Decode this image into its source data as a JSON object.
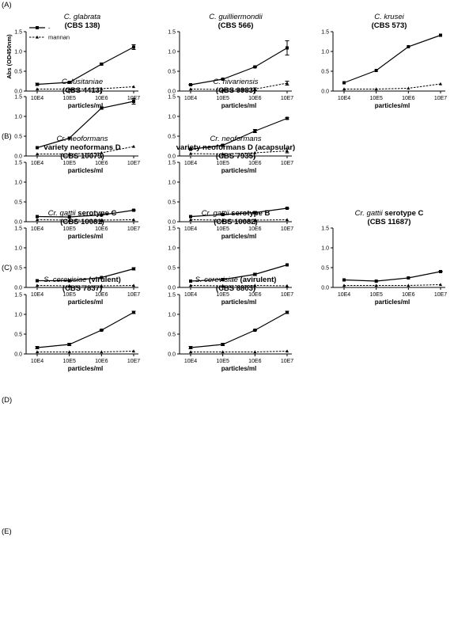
{
  "legend": {
    "line1": "-",
    "line2": "mannan"
  },
  "rows": [
    {
      "label": "(A)",
      "top": 0
    },
    {
      "label": "(B)",
      "top": 1
    },
    {
      "label": "(C)",
      "top": 2
    },
    {
      "label": "(D)",
      "top": 3
    },
    {
      "label": "(E)",
      "top": 4
    }
  ],
  "chart_data": [
    {
      "type": "line",
      "row": 0,
      "col": 0,
      "title_italic": "C. glabrata",
      "title_bold": "(CBS 138)",
      "title_line1_bold": "",
      "ylabel": "Abs (OD450nm)",
      "xlabel": "particles/ml",
      "categories": [
        "10E4",
        "10E5",
        "10E6",
        "10E7"
      ],
      "ylim": [
        0,
        1.5
      ],
      "yticks": [
        "0.0",
        "0.5",
        "1.0",
        "1.5"
      ],
      "series": [
        {
          "values": [
            0.17,
            0.22,
            0.68,
            1.11
          ],
          "err": [
            0.03,
            0.01,
            0.02,
            0.06
          ]
        },
        {
          "values": [
            0.05,
            0.05,
            0.06,
            0.11
          ],
          "err": [
            0,
            0,
            0,
            0
          ]
        }
      ]
    },
    {
      "type": "line",
      "row": 0,
      "col": 1,
      "title_italic": "C. guilliermondii",
      "title_bold": "(CBS 566)",
      "title_line1_bold": "",
      "ylabel": "",
      "xlabel": "particles/ml",
      "categories": [
        "10E4",
        "10E5",
        "10E6",
        "10E7"
      ],
      "ylim": [
        0,
        1.5
      ],
      "yticks": [
        "0.0",
        "0.5",
        "1.0",
        "1.5"
      ],
      "series": [
        {
          "values": [
            0.16,
            0.3,
            0.61,
            1.09
          ],
          "err": [
            0.01,
            0.01,
            0.01,
            0.18
          ]
        },
        {
          "values": [
            0.05,
            0.04,
            0.05,
            0.2
          ],
          "err": [
            0,
            0,
            0.03,
            0.05
          ]
        }
      ]
    },
    {
      "type": "line",
      "row": 0,
      "col": 2,
      "title_italic": "C. krusei",
      "title_bold": "(CBS 573)",
      "title_line1_bold": "",
      "ylabel": "",
      "xlabel": "particles/ml",
      "categories": [
        "10E4",
        "10E5",
        "10E6",
        "10E7"
      ],
      "ylim": [
        0,
        1.5
      ],
      "yticks": [
        "0.0",
        "0.5",
        "1.0",
        "1.5"
      ],
      "series": [
        {
          "values": [
            0.21,
            0.52,
            1.12,
            1.41
          ],
          "err": [
            0,
            0,
            0,
            0
          ]
        },
        {
          "values": [
            0.05,
            0.05,
            0.07,
            0.18
          ],
          "err": [
            0,
            0,
            0,
            0
          ]
        }
      ]
    },
    {
      "type": "line",
      "row": 1,
      "col": 0,
      "title_italic": "C. lusitaniae",
      "title_bold": "(CBS 4413)",
      "title_line1_bold": "",
      "ylabel": "",
      "xlabel": "particles/ml",
      "categories": [
        "10E4",
        "10E5",
        "10E6",
        "10E7"
      ],
      "ylim": [
        0,
        1.5
      ],
      "yticks": [
        "0.0",
        "0.5",
        "1.0",
        "1.5"
      ],
      "series": [
        {
          "values": [
            0.21,
            0.45,
            1.21,
            1.38
          ],
          "err": [
            0,
            0,
            0.03,
            0.07
          ]
        },
        {
          "values": [
            0.05,
            0.05,
            0.08,
            0.24
          ],
          "err": [
            0,
            0,
            0,
            0
          ]
        }
      ]
    },
    {
      "type": "line",
      "row": 1,
      "col": 1,
      "title_italic": "C. nivariensis",
      "title_bold": "(CBS 9983)",
      "title_line1_bold": "",
      "ylabel": "",
      "xlabel": "particles/ml",
      "categories": [
        "10E4",
        "10E5",
        "10E6",
        "10E7"
      ],
      "ylim": [
        0,
        1.5
      ],
      "yticks": [
        "0.0",
        "0.5",
        "1.0",
        "1.5"
      ],
      "series": [
        {
          "values": [
            0.17,
            0.27,
            0.63,
            0.95
          ],
          "err": [
            0.01,
            0.02,
            0.04,
            0.02
          ]
        },
        {
          "values": [
            0.06,
            0.05,
            0.08,
            0.13
          ],
          "err": [
            0,
            0,
            0,
            0.05
          ]
        }
      ]
    },
    {
      "type": "line",
      "row": 2,
      "col": 0,
      "title_italic": "Cr. neoformans",
      "title_line1_bold": "variety neoformans D",
      "title_bold": "(CBS 10079)",
      "ylabel": "",
      "xlabel": "particles/ml",
      "categories": [
        "10E4",
        "10E5",
        "10E6",
        "10E7"
      ],
      "ylim": [
        0,
        1.5
      ],
      "yticks": [
        "0.0",
        "0.5",
        "1.0",
        "1.5"
      ],
      "series": [
        {
          "values": [
            0.13,
            0.12,
            0.17,
            0.29
          ],
          "err": [
            0,
            0,
            0,
            0.01
          ]
        },
        {
          "values": [
            0.05,
            0.04,
            0.04,
            0.05
          ],
          "err": [
            0,
            0,
            0,
            0
          ]
        }
      ]
    },
    {
      "type": "line",
      "row": 2,
      "col": 1,
      "title_italic": "Cr. neoformans",
      "title_line1_bold": "variety neoformans D (acapsular)",
      "title_bold": "(CBS 7935)",
      "ylabel": "",
      "xlabel": "particles/ml",
      "categories": [
        "10E4",
        "10E5",
        "10E6",
        "10E7"
      ],
      "ylim": [
        0,
        1.5
      ],
      "yticks": [
        "0.0",
        "0.5",
        "1.0",
        "1.5"
      ],
      "series": [
        {
          "values": [
            0.13,
            0.18,
            0.23,
            0.34
          ],
          "err": [
            0,
            0.01,
            0.03,
            0.01
          ]
        },
        {
          "values": [
            0.05,
            0.04,
            0.04,
            0.05
          ],
          "err": [
            0,
            0,
            0,
            0
          ]
        }
      ]
    },
    {
      "type": "line",
      "row": 3,
      "col": 0,
      "title_italic": "Cr. gattii",
      "title_italic_suffix_bold": " serotype C",
      "title_bold": "(CBS 10081)",
      "title_line1_bold": "",
      "ylabel": "",
      "xlabel": "particles/ml",
      "categories": [
        "10E4",
        "10E5",
        "10E6",
        "10E7"
      ],
      "ylim": [
        0,
        1.5
      ],
      "yticks": [
        "0.0",
        "0.5",
        "1.0",
        "1.5"
      ],
      "series": [
        {
          "values": [
            0.17,
            0.17,
            0.25,
            0.47
          ],
          "err": [
            0,
            0,
            0,
            0.03
          ]
        },
        {
          "values": [
            0.05,
            0.04,
            0.04,
            0.05
          ],
          "err": [
            0,
            0,
            0,
            0
          ]
        }
      ]
    },
    {
      "type": "line",
      "row": 3,
      "col": 1,
      "title_italic": "Cr. gattii",
      "title_italic_suffix_bold": " serotype B",
      "title_bold": "(CBS 10082)",
      "title_line1_bold": "",
      "ylabel": "",
      "xlabel": "particles/ml",
      "categories": [
        "10E4",
        "10E5",
        "10E6",
        "10E7"
      ],
      "ylim": [
        0,
        1.5
      ],
      "yticks": [
        "0.0",
        "0.5",
        "1.0",
        "1.5"
      ],
      "series": [
        {
          "values": [
            0.16,
            0.2,
            0.33,
            0.57
          ],
          "err": [
            0,
            0.03,
            0.03,
            0
          ]
        },
        {
          "values": [
            0.05,
            0.04,
            0.05,
            0.04
          ],
          "err": [
            0,
            0,
            0,
            0
          ]
        }
      ]
    },
    {
      "type": "line",
      "row": 3,
      "col": 2,
      "title_italic": "Cr. gattii",
      "title_italic_suffix_bold": " serotype C",
      "title_bold": "(CBS 11687)",
      "title_line1_bold": "",
      "ylabel": "",
      "xlabel": "particles/ml",
      "categories": [
        "10E4",
        "10E5",
        "10E6",
        "10E7"
      ],
      "ylim": [
        0,
        1.5
      ],
      "yticks": [
        "0.0",
        "0.5",
        "1.0",
        "1.5"
      ],
      "series": [
        {
          "values": [
            0.19,
            0.16,
            0.24,
            0.4
          ],
          "err": [
            0,
            0,
            0,
            0.01
          ]
        },
        {
          "values": [
            0.05,
            0.05,
            0.05,
            0.07
          ],
          "err": [
            0,
            0,
            0,
            0
          ]
        }
      ]
    },
    {
      "type": "line",
      "row": 4,
      "col": 0,
      "title_italic": "S. cerevisiae",
      "title_italic_suffix_bold": " (virulent)",
      "title_bold": "(CBS 7837)",
      "title_line1_bold": "",
      "ylabel": "",
      "xlabel": "particles/ml",
      "categories": [
        "10E4",
        "10E5",
        "10E6",
        "10E7"
      ],
      "ylim": [
        0,
        1.5
      ],
      "yticks": [
        "0.0",
        "0.5",
        "1.0",
        "1.5"
      ],
      "series": [
        {
          "values": [
            0.16,
            0.24,
            0.6,
            1.05
          ],
          "err": [
            0.03,
            0.03,
            0.01,
            0.03
          ]
        },
        {
          "values": [
            0.05,
            0.05,
            0.05,
            0.07
          ],
          "err": [
            0,
            0,
            0,
            0
          ]
        }
      ]
    },
    {
      "type": "line",
      "row": 4,
      "col": 1,
      "title_italic": "S. cerevisiae",
      "title_italic_suffix_bold": " (avirulent)",
      "title_bold": "(CBS 8803)",
      "title_line1_bold": "",
      "ylabel": "",
      "xlabel": "particles/ml",
      "categories": [
        "10E4",
        "10E5",
        "10E6",
        "10E7"
      ],
      "ylim": [
        0,
        1.5
      ],
      "yticks": [
        "0.0",
        "0.5",
        "1.0",
        "1.5"
      ],
      "series": [
        {
          "values": [
            0.16,
            0.24,
            0.6,
            1.05
          ],
          "err": [
            0.03,
            0.03,
            0.01,
            0.03
          ]
        },
        {
          "values": [
            0.05,
            0.05,
            0.05,
            0.07
          ],
          "err": [
            0,
            0,
            0,
            0
          ]
        }
      ]
    }
  ]
}
